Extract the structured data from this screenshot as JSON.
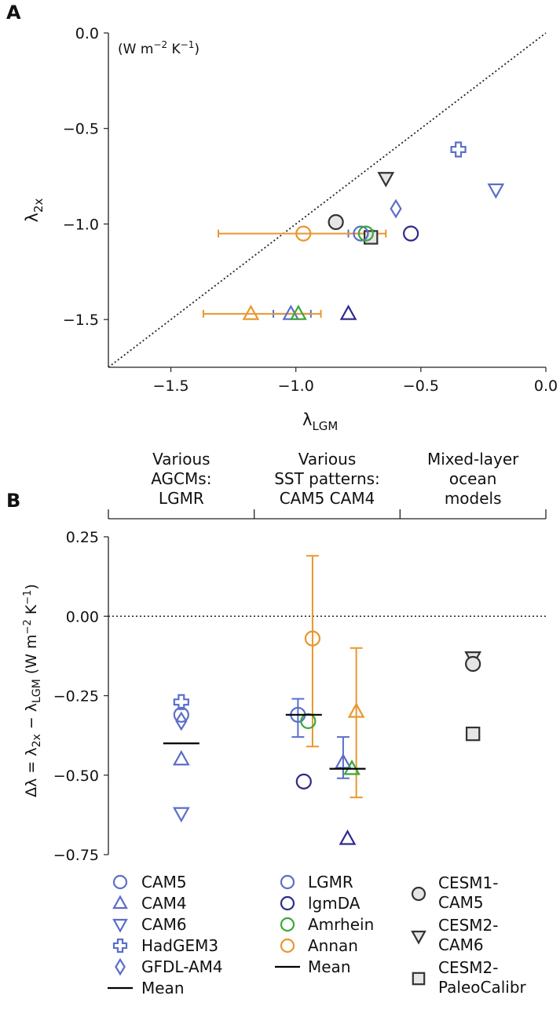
{
  "colors": {
    "cam_blue": "#5b6ec9",
    "lgmr": "#5b6ec9",
    "lgmda": "#2e2a8a",
    "amrhein": "#3aa83a",
    "annan": "#e8972e",
    "gray_fill": "#e6e6e6",
    "dark": "#333333"
  },
  "chart_data": [
    {
      "panel": "A",
      "type": "scatter",
      "xlabel": "λLGM",
      "xlabel_main": "λ",
      "xlabel_sub": "LGM",
      "ylabel_main": "λ",
      "ylabel_sub": "2x",
      "units": "(W m⁻² K⁻¹)",
      "units_text": "(W m",
      "units_exp1": "−2",
      "units_mid": " K",
      "units_exp2": "−1",
      "units_close": ")",
      "xlim": [
        -1.75,
        0.0
      ],
      "ylim": [
        -1.75,
        0.0
      ],
      "xticks": [
        -1.5,
        -1.0,
        -0.5,
        0.0
      ],
      "xtick_labels": [
        "−1.5",
        "−1.0",
        "−0.5",
        "0.0"
      ],
      "yticks": [
        0.0,
        -0.5,
        -1.0,
        -1.5
      ],
      "ytick_labels": [
        "0.0",
        "−0.5",
        "−1.0",
        "−1.5"
      ],
      "one_to_one_line": true,
      "points": [
        {
          "name": "CESM1-CAM5",
          "marker": "circle",
          "color": "dark",
          "fill": "gray_fill",
          "x": -0.84,
          "y": -0.99
        },
        {
          "name": "CESM2-CAM6",
          "marker": "tri-down",
          "color": "dark",
          "fill": "gray_fill",
          "x": -0.64,
          "y": -0.76
        },
        {
          "name": "CESM2-PaleoCalibr",
          "marker": "square",
          "color": "dark",
          "fill": "gray_fill",
          "x": -0.7,
          "y": -1.07
        },
        {
          "name": "HadGEM3",
          "marker": "plus",
          "color": "cam_blue",
          "x": -0.35,
          "y": -0.61
        },
        {
          "name": "CAM6",
          "marker": "tri-down",
          "color": "cam_blue",
          "x": -0.2,
          "y": -0.82
        },
        {
          "name": "GFDL-AM4",
          "marker": "diamond",
          "color": "cam_blue",
          "x": -0.6,
          "y": -0.92
        },
        {
          "name": "CAM5 LGMR",
          "marker": "circle",
          "color": "lgmr",
          "x": -0.74,
          "y": -1.05,
          "xerr": [
            0.05,
            0.05
          ]
        },
        {
          "name": "CAM5 lgmDA",
          "marker": "circle",
          "color": "lgmda",
          "x": -0.54,
          "y": -1.05
        },
        {
          "name": "CAM5 Amrhein",
          "marker": "circle",
          "color": "amrhein",
          "x": -0.72,
          "y": -1.05
        },
        {
          "name": "CAM5 Annan",
          "marker": "circle",
          "color": "annan",
          "x": -0.97,
          "y": -1.05,
          "xerr": [
            0.34,
            0.33
          ]
        },
        {
          "name": "CAM4 LGMR",
          "marker": "tri-up",
          "color": "lgmr",
          "x": -1.02,
          "y": -1.47,
          "xerr": [
            0.07,
            0.08
          ]
        },
        {
          "name": "CAM4 lgmDA",
          "marker": "tri-up",
          "color": "lgmda",
          "x": -0.79,
          "y": -1.47
        },
        {
          "name": "CAM4 Amrhein",
          "marker": "tri-up",
          "color": "amrhein",
          "x": -0.99,
          "y": -1.47
        },
        {
          "name": "CAM4 Annan",
          "marker": "tri-up",
          "color": "annan",
          "x": -1.18,
          "y": -1.47,
          "xerr": [
            0.19,
            0.28
          ]
        }
      ]
    },
    {
      "panel": "B",
      "type": "scatter",
      "ylabel": "Δλ = λ2x − λLGM (W m⁻² K⁻¹)",
      "ylabel_a": "Δλ = λ",
      "ylabel_s1": "2x",
      "ylabel_b": " − λ",
      "ylabel_s2": "LGM",
      "ylabel_c": "  (W m",
      "ylabel_e1": "−2",
      "ylabel_d": " K",
      "ylabel_e2": "−1",
      "ylabel_f": ")",
      "ylim": [
        -0.75,
        0.25
      ],
      "yticks": [
        0.25,
        0.0,
        -0.25,
        -0.5,
        -0.75
      ],
      "ytick_labels": [
        "0.25",
        "0.00",
        "−0.25",
        "−0.50",
        "−0.75"
      ],
      "zero_line": true,
      "x_axis": "categorical",
      "groups": [
        {
          "lines": [
            "Various",
            "AGCMs:",
            "LGMR"
          ]
        },
        {
          "lines": [
            "Various",
            "SST patterns:",
            "CAM5 CAM4"
          ]
        },
        {
          "lines": [
            "Mixed-layer",
            "ocean",
            "models"
          ]
        }
      ],
      "points": [
        {
          "name": "HadGEM3",
          "marker": "plus",
          "color": "cam_blue",
          "x": 0.5,
          "y": -0.27
        },
        {
          "name": "CAM5",
          "marker": "circle",
          "color": "cam_blue",
          "x": 0.5,
          "y": -0.31
        },
        {
          "name": "GFDL-AM4",
          "marker": "diamond",
          "color": "cam_blue",
          "x": 0.5,
          "y": -0.33
        },
        {
          "name": "CAM4",
          "marker": "tri-up",
          "color": "cam_blue",
          "x": 0.5,
          "y": -0.45
        },
        {
          "name": "CAM6",
          "marker": "tri-down",
          "color": "cam_blue",
          "x": 0.5,
          "y": -0.62
        },
        {
          "name": "CAM5 LGMR",
          "marker": "circle",
          "color": "lgmr",
          "x": 1.3,
          "y": -0.31,
          "yerr": [
            0.07,
            0.05
          ]
        },
        {
          "name": "CAM5 lgmDA",
          "marker": "circle",
          "color": "lgmda",
          "x": 1.34,
          "y": -0.52
        },
        {
          "name": "CAM5 Amrhein",
          "marker": "circle",
          "color": "amrhein",
          "x": 1.37,
          "y": -0.33
        },
        {
          "name": "CAM5 Annan",
          "marker": "circle",
          "color": "annan",
          "x": 1.4,
          "y": -0.07,
          "yerr": [
            0.34,
            0.26
          ]
        },
        {
          "name": "CAM4 LGMR",
          "marker": "tri-up",
          "color": "lgmr",
          "x": 1.61,
          "y": -0.46,
          "yerr": [
            0.05,
            0.08
          ]
        },
        {
          "name": "CAM4 lgmDA",
          "marker": "tri-up",
          "color": "lgmda",
          "x": 1.64,
          "y": -0.7
        },
        {
          "name": "CAM4 Amrhein",
          "marker": "tri-up",
          "color": "amrhein",
          "x": 1.67,
          "y": -0.48
        },
        {
          "name": "CAM4 Annan",
          "marker": "tri-up",
          "color": "annan",
          "x": 1.7,
          "y": -0.3,
          "yerr": [
            0.27,
            0.2
          ]
        },
        {
          "name": "CESM2-CAM6",
          "marker": "tri-down",
          "color": "dark",
          "fill": "gray_fill",
          "x": 2.5,
          "y": -0.13
        },
        {
          "name": "CESM1-CAM5",
          "marker": "circle",
          "color": "dark",
          "fill": "gray_fill",
          "x": 2.5,
          "y": -0.15
        },
        {
          "name": "CESM2-PaleoCalibr",
          "marker": "square",
          "color": "dark",
          "fill": "gray_fill",
          "x": 2.5,
          "y": -0.37
        }
      ],
      "means": [
        {
          "x": 0.5,
          "y": -0.4
        },
        {
          "x": 1.34,
          "y": -0.31
        },
        {
          "x": 1.64,
          "y": -0.48
        }
      ]
    }
  ],
  "legend": {
    "col1": [
      {
        "label": "CAM5",
        "marker": "circle",
        "color": "cam_blue"
      },
      {
        "label": "CAM4",
        "marker": "tri-up",
        "color": "cam_blue"
      },
      {
        "label": "CAM6",
        "marker": "tri-down",
        "color": "cam_blue"
      },
      {
        "label": "HadGEM3",
        "marker": "plus",
        "color": "cam_blue"
      },
      {
        "label": "GFDL-AM4",
        "marker": "diamond",
        "color": "cam_blue"
      },
      {
        "label": "Mean",
        "marker": "line",
        "color": "black"
      }
    ],
    "col2": [
      {
        "label": "LGMR",
        "marker": "circle",
        "color": "lgmr"
      },
      {
        "label": "lgmDA",
        "marker": "circle",
        "color": "lgmda"
      },
      {
        "label": "Amrhein",
        "marker": "circle",
        "color": "amrhein"
      },
      {
        "label": "Annan",
        "marker": "circle",
        "color": "annan"
      },
      {
        "label": "Mean",
        "marker": "line",
        "color": "black"
      }
    ],
    "col3": [
      {
        "lines": [
          "CESM1-",
          "CAM5"
        ],
        "marker": "circle",
        "color": "dark",
        "fill": "gray_fill"
      },
      {
        "lines": [
          "CESM2-",
          "CAM6"
        ],
        "marker": "tri-down",
        "color": "dark",
        "fill": "gray_fill"
      },
      {
        "lines": [
          "CESM2-",
          "PaleoCalibr"
        ],
        "marker": "square",
        "color": "dark",
        "fill": "gray_fill"
      }
    ]
  }
}
